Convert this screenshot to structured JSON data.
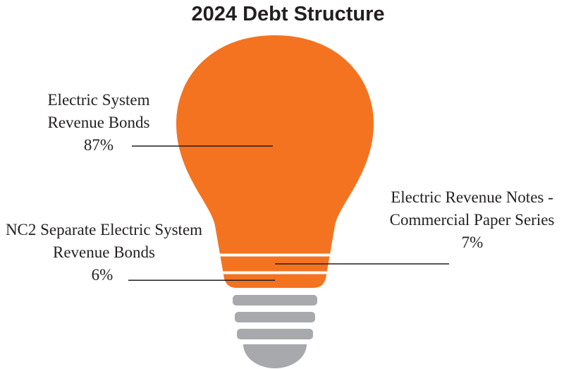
{
  "chart_data": {
    "type": "bulb",
    "title": "2024 Debt Structure",
    "categories": [
      "Electric System Revenue Bonds",
      "Electric Revenue Notes - Commercial Paper Series",
      "NC2 Separate Electric System Revenue Bonds"
    ],
    "values": [
      87,
      7,
      6
    ],
    "value_labels": [
      "87%",
      "7%",
      "6%"
    ],
    "color": "#f47321"
  }
}
